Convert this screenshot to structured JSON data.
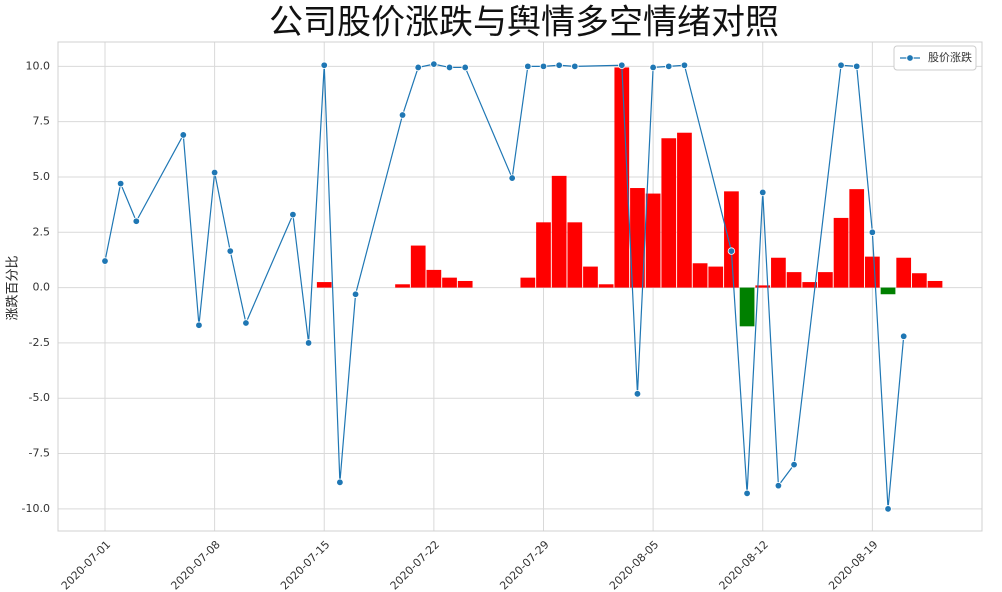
{
  "chart_data": {
    "type": "line",
    "title": "公司股价涨跌与舆情多空情绪对照",
    "ylabel": "涨跌百分比",
    "series": [
      {
        "name": "股价涨跌",
        "color": "#1f77b4",
        "x": [
          "2020-07-01",
          "2020-07-02",
          "2020-07-03",
          "2020-07-06",
          "2020-07-07",
          "2020-07-08",
          "2020-07-09",
          "2020-07-10",
          "2020-07-13",
          "2020-07-14",
          "2020-07-15",
          "2020-07-16",
          "2020-07-17",
          "2020-07-20",
          "2020-07-21",
          "2020-07-22",
          "2020-07-23",
          "2020-07-24",
          "2020-07-27",
          "2020-07-28",
          "2020-07-29",
          "2020-07-30",
          "2020-07-31",
          "2020-08-03",
          "2020-08-04",
          "2020-08-05",
          "2020-08-06",
          "2020-08-07",
          "2020-08-10",
          "2020-08-11",
          "2020-08-12",
          "2020-08-13",
          "2020-08-14",
          "2020-08-17",
          "2020-08-18",
          "2020-08-19",
          "2020-08-20",
          "2020-08-21"
        ],
        "values": [
          1.2,
          4.7,
          3.0,
          6.9,
          -1.7,
          5.2,
          1.65,
          -1.6,
          3.3,
          -2.5,
          10.05,
          -8.8,
          -0.3,
          7.8,
          9.95,
          10.1,
          9.95,
          9.95,
          4.95,
          10.0,
          10.0,
          10.05,
          10.0,
          10.05,
          -4.8,
          9.95,
          10.0,
          10.05,
          1.65,
          -9.3,
          4.3,
          -8.95,
          -8.0,
          10.05,
          10.0,
          2.5,
          -10.0,
          -2.2
        ]
      }
    ],
    "bars": {
      "positive_color": "#ff0000",
      "negative_color": "#008000",
      "x": [
        "2020-07-15",
        "2020-07-20",
        "2020-07-21",
        "2020-07-22",
        "2020-07-23",
        "2020-07-24",
        "2020-07-28",
        "2020-07-29",
        "2020-07-30",
        "2020-07-31",
        "2020-08-01",
        "2020-08-02",
        "2020-08-03",
        "2020-08-04",
        "2020-08-05",
        "2020-08-06",
        "2020-08-07",
        "2020-08-08",
        "2020-08-09",
        "2020-08-10",
        "2020-08-11",
        "2020-08-12",
        "2020-08-13",
        "2020-08-14",
        "2020-08-15",
        "2020-08-16",
        "2020-08-17",
        "2020-08-18",
        "2020-08-19",
        "2020-08-20",
        "2020-08-21",
        "2020-08-22",
        "2020-08-23"
      ],
      "values": [
        0.25,
        0.15,
        1.9,
        0.8,
        0.45,
        0.3,
        0.45,
        2.95,
        5.05,
        2.95,
        0.95,
        0.15,
        9.95,
        4.5,
        4.25,
        6.75,
        7.0,
        1.1,
        0.95,
        4.35,
        -1.75,
        0.1,
        1.35,
        0.7,
        0.25,
        0.7,
        3.15,
        4.45,
        1.4,
        -0.3,
        1.35,
        0.65,
        0.3
      ]
    },
    "xlim": [
      "2020-06-28",
      "2020-08-26"
    ],
    "xticks": [
      "2020-07-01",
      "2020-07-08",
      "2020-07-15",
      "2020-07-22",
      "2020-07-29",
      "2020-08-05",
      "2020-08-12",
      "2020-08-19"
    ],
    "ylim": [
      -11.0,
      11.1
    ],
    "yticks": [
      {
        "value": -10,
        "label": "-10.0"
      },
      {
        "value": -7.5,
        "label": "-7.5"
      },
      {
        "value": -5,
        "label": "-5.0"
      },
      {
        "value": -2.5,
        "label": "-2.5"
      },
      {
        "value": 0,
        "label": "0.0"
      },
      {
        "value": 2.5,
        "label": "2.5"
      },
      {
        "value": 5,
        "label": "5.0"
      },
      {
        "value": 7.5,
        "label": "7.5"
      },
      {
        "value": 10,
        "label": "10.0"
      }
    ],
    "grid": true,
    "legend": "upper-right"
  }
}
